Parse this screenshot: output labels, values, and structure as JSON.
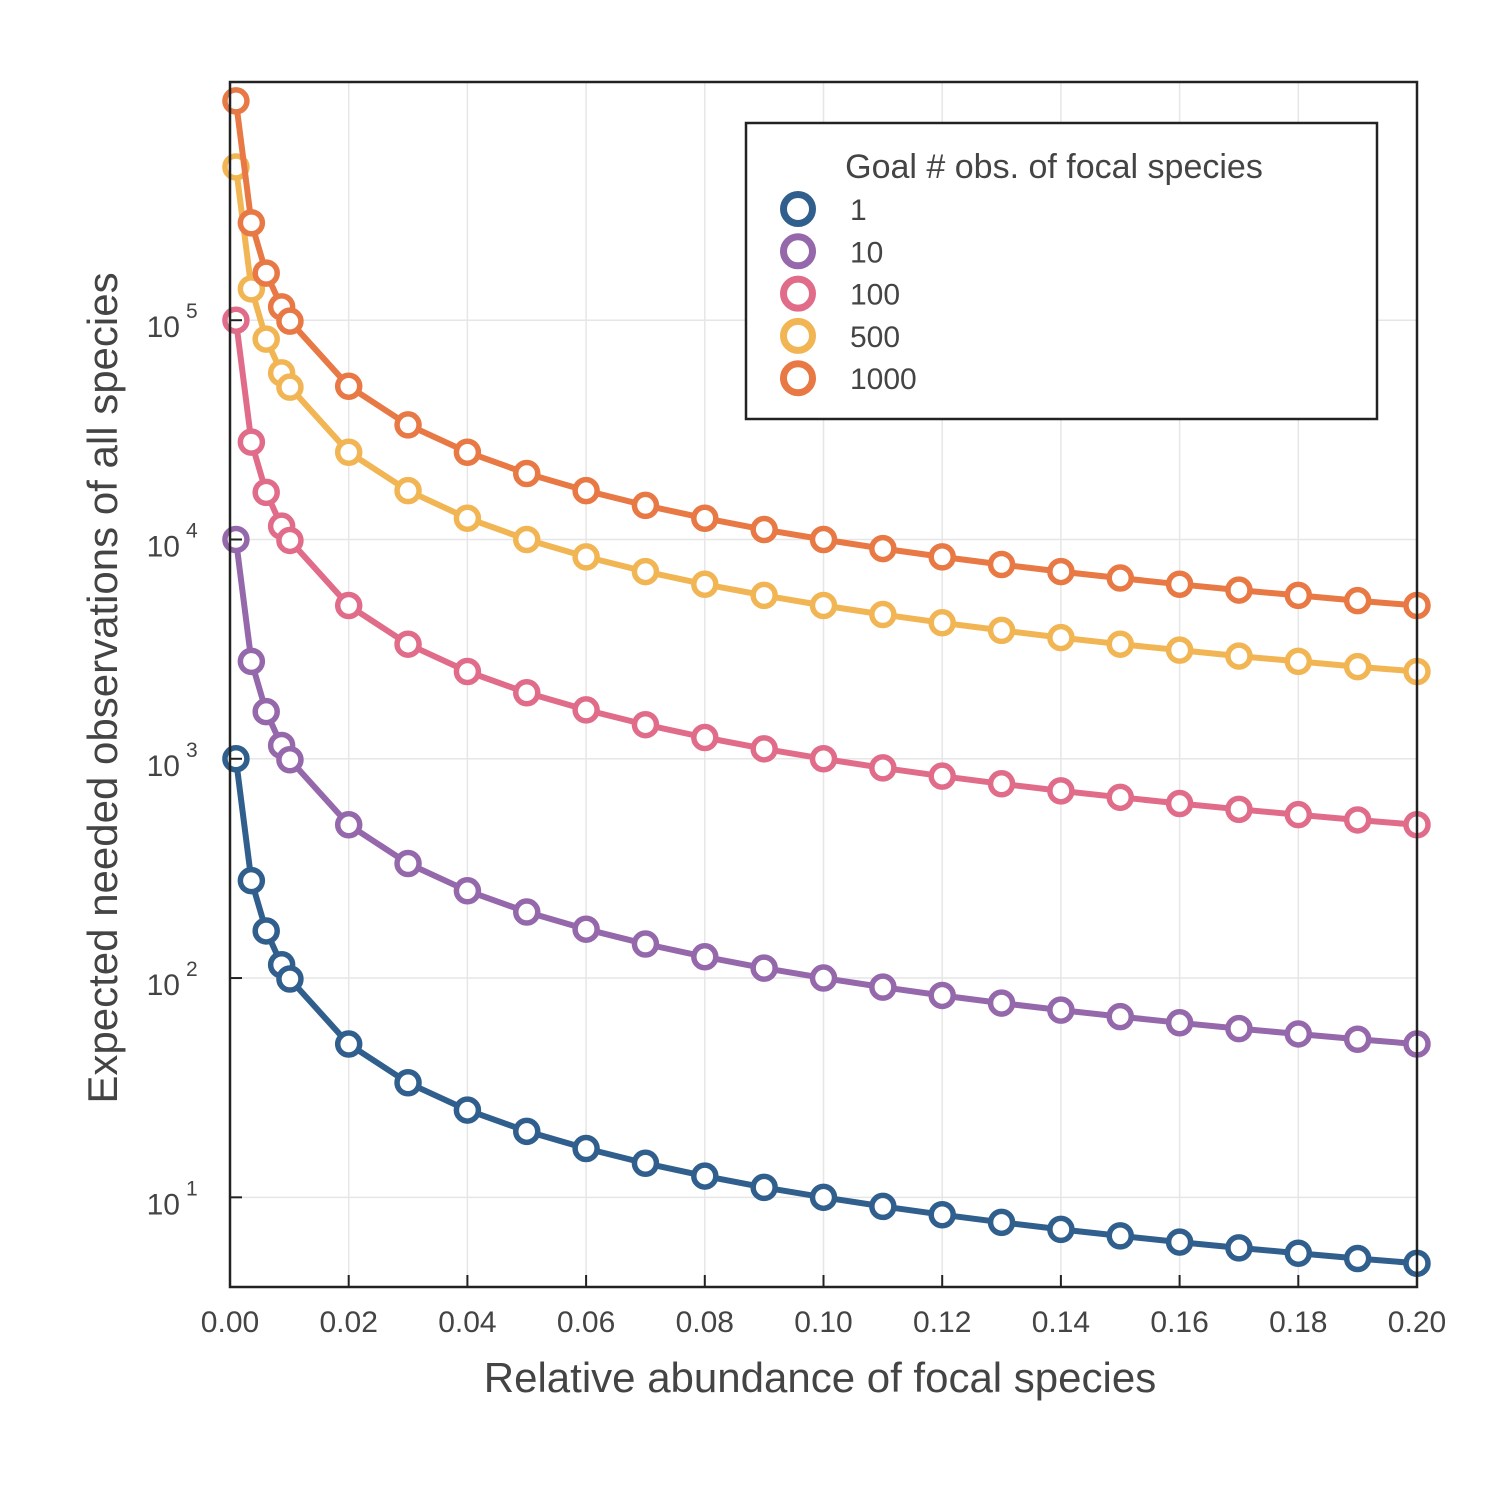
{
  "chart_data": {
    "type": "line",
    "title": "",
    "xlabel": "Relative abundance of focal species",
    "ylabel": "Expected needed observations of all species",
    "xlim": [
      0.0,
      0.2
    ],
    "ylim": [
      3.9,
      1220000
    ],
    "y_scale": "log",
    "grid": true,
    "marker": "open-circle",
    "x_ticks": [
      "0.00",
      "0.02",
      "0.04",
      "0.06",
      "0.08",
      "0.10",
      "0.12",
      "0.14",
      "0.16",
      "0.18",
      "0.20"
    ],
    "y_ticks": [
      {
        "base": "10",
        "exp": "1",
        "value": 10
      },
      {
        "base": "10",
        "exp": "2",
        "value": 100
      },
      {
        "base": "10",
        "exp": "3",
        "value": 1000
      },
      {
        "base": "10",
        "exp": "4",
        "value": 10000
      },
      {
        "base": "10",
        "exp": "5",
        "value": 100000
      }
    ],
    "legend": {
      "title": "Goal # obs. of focal species",
      "position": "top-right"
    },
    "x": [
      0.001,
      0.0036,
      0.0061,
      0.0087,
      0.0101,
      0.02,
      0.03,
      0.04,
      0.05,
      0.06,
      0.07,
      0.08,
      0.09,
      0.1,
      0.11,
      0.12,
      0.13,
      0.14,
      0.15,
      0.16,
      0.17,
      0.18,
      0.19,
      0.2
    ],
    "series": [
      {
        "name": "1",
        "color": "#305f8d",
        "values": [
          1000,
          278,
          164,
          115,
          99,
          50,
          33.3,
          25,
          20,
          16.7,
          14.3,
          12.5,
          11.1,
          10,
          9.09,
          8.33,
          7.69,
          7.14,
          6.67,
          6.25,
          5.88,
          5.56,
          5.26,
          5
        ]
      },
      {
        "name": "10",
        "color": "#9468ab",
        "values": [
          10000,
          2780,
          1640,
          1150,
          990,
          500,
          333,
          250,
          200,
          167,
          143,
          125,
          111,
          100,
          90.9,
          83.3,
          76.9,
          71.4,
          66.7,
          62.5,
          58.8,
          55.6,
          52.6,
          50
        ]
      },
      {
        "name": "100",
        "color": "#e06c8a",
        "values": [
          100000,
          27800,
          16400,
          11500,
          9900,
          5000,
          3330,
          2500,
          2000,
          1670,
          1430,
          1250,
          1110,
          1000,
          909,
          833,
          769,
          714,
          667,
          625,
          588,
          556,
          526,
          500
        ]
      },
      {
        "name": "500",
        "color": "#f2b554",
        "values": [
          500000,
          139000,
          82000,
          57500,
          49500,
          25000,
          16700,
          12500,
          10000,
          8330,
          7140,
          6250,
          5560,
          5000,
          4550,
          4170,
          3850,
          3570,
          3330,
          3130,
          2940,
          2780,
          2630,
          2500
        ]
      },
      {
        "name": "1000",
        "color": "#e87844",
        "values": [
          1000000,
          278000,
          164000,
          115000,
          99000,
          50000,
          33300,
          25000,
          20000,
          16700,
          14300,
          12500,
          11100,
          10000,
          9090,
          8330,
          7690,
          7140,
          6670,
          6250,
          5880,
          5560,
          5260,
          5000
        ]
      }
    ]
  }
}
